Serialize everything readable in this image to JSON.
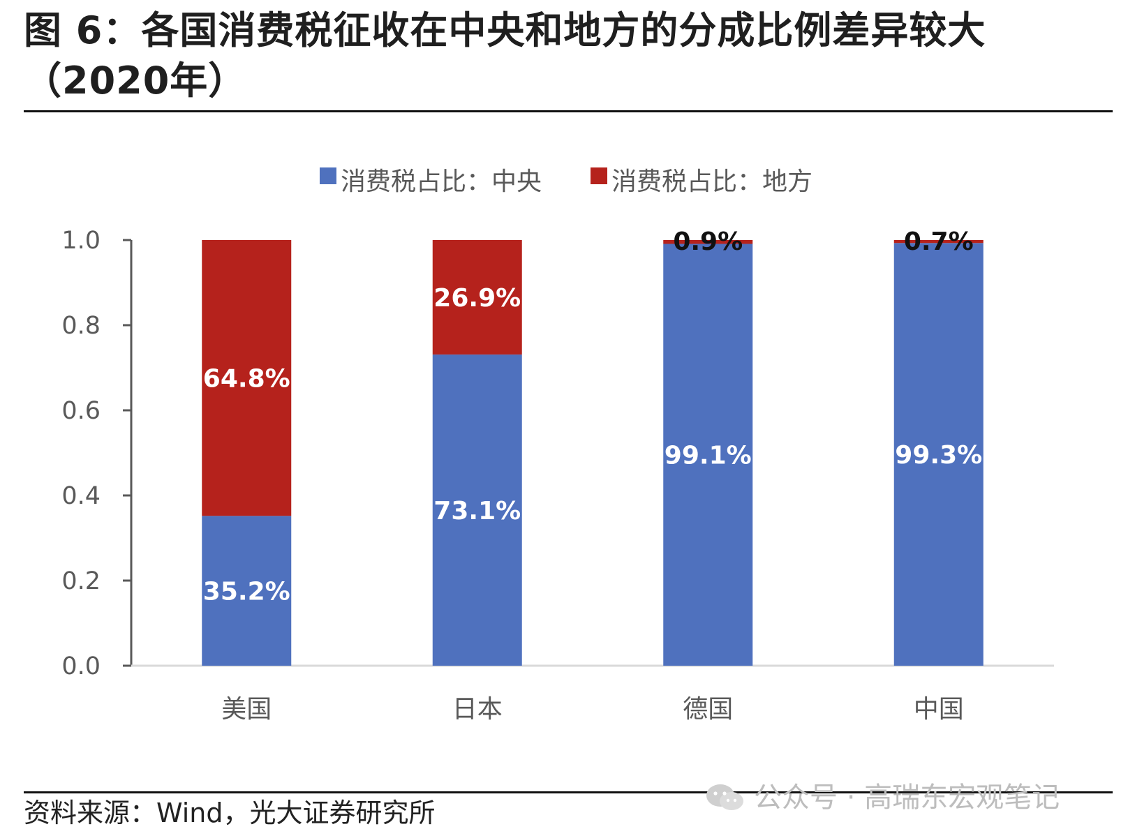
{
  "figure": {
    "title": "图 6：各国消费税征收在中央和地方的分成比例差异较大（2020年）",
    "source": "资料来源：Wind，光大证券研究所",
    "watermark": "公众号 · 高瑞东宏观笔记"
  },
  "colors": {
    "central": "#4f71be",
    "local": "#b5221c",
    "axis": "#595959"
  },
  "chart_data": {
    "type": "bar",
    "stacked": true,
    "categories": [
      "美国",
      "日本",
      "德国",
      "中国"
    ],
    "series": [
      {
        "name": "消费税占比：中央",
        "values": [
          0.352,
          0.731,
          0.991,
          0.993
        ],
        "labels": [
          "35.2%",
          "73.1%",
          "99.1%",
          "99.3%"
        ]
      },
      {
        "name": "消费税占比：地方",
        "values": [
          0.648,
          0.269,
          0.009,
          0.007
        ],
        "labels": [
          "64.8%",
          "26.9%",
          "0.9%",
          "0.7%"
        ]
      }
    ],
    "yticks": [
      "0.0",
      "0.2",
      "0.4",
      "0.6",
      "0.8",
      "1.0"
    ],
    "ylim": [
      0,
      1.0
    ],
    "legend": "top-center",
    "grid": false
  }
}
